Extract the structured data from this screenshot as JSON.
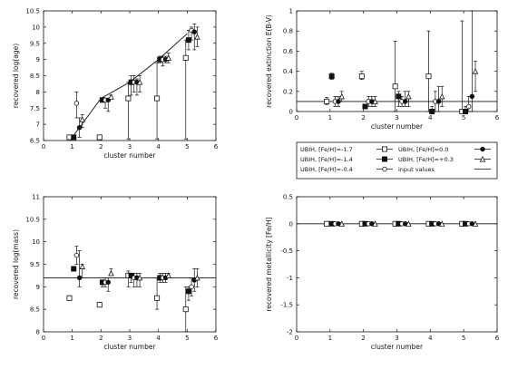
{
  "chart_data": [
    {
      "type": "scatter",
      "xlabel": "cluster number",
      "ylabel": "recovered log(age)",
      "xlim": [
        0,
        6
      ],
      "ylim": [
        6.5,
        10.5
      ],
      "xticks": [
        "0",
        "1",
        "2",
        "3",
        "4",
        "5",
        "6"
      ],
      "yticks": [
        "6.5",
        "7",
        "7.5",
        "8",
        "8.5",
        "9",
        "9.5",
        "10",
        "10.5"
      ],
      "input_values": [
        {
          "x": 1,
          "y": 6.6
        },
        {
          "x": 2,
          "y": 7.8
        },
        {
          "x": 3,
          "y": 8.3
        },
        {
          "x": 4,
          "y": 9.0
        },
        {
          "x": 5,
          "y": 9.8
        }
      ],
      "series": [
        {
          "name": "UBIH, [Fe/H]=-1.7",
          "marker": "open-square",
          "points": [
            {
              "x": 0.9,
              "y": 6.6,
              "lo": 6.55,
              "hi": 6.65
            },
            {
              "x": 1.95,
              "y": 6.6,
              "lo": 6.55,
              "hi": 6.65
            },
            {
              "x": 2.95,
              "y": 7.8,
              "lo": 6.55,
              "hi": 8.3
            },
            {
              "x": 3.95,
              "y": 7.8,
              "lo": 6.55,
              "hi": 8.9
            },
            {
              "x": 4.95,
              "y": 9.05,
              "lo": 6.55,
              "hi": 9.6
            }
          ]
        },
        {
          "name": "UBIH, [Fe/H]=-1.4",
          "marker": "filled-square",
          "points": [
            {
              "x": 1.05,
              "y": 6.6,
              "lo": 6.55,
              "hi": 6.65
            },
            {
              "x": 2.05,
              "y": 7.75,
              "lo": 7.7,
              "hi": 7.8
            },
            {
              "x": 3.05,
              "y": 8.3,
              "lo": 7.9,
              "hi": 8.5
            },
            {
              "x": 4.05,
              "y": 9.0,
              "lo": 8.9,
              "hi": 9.1
            },
            {
              "x": 5.05,
              "y": 9.6,
              "lo": 9.3,
              "hi": 9.9
            }
          ]
        },
        {
          "name": "UBIH, [Fe/H]=-0.4",
          "marker": "open-circle",
          "points": [
            {
              "x": 1.15,
              "y": 7.65,
              "lo": 7.2,
              "hi": 8.0
            },
            {
              "x": 2.15,
              "y": 7.75,
              "lo": 7.5,
              "hi": 7.8
            },
            {
              "x": 3.15,
              "y": 8.3,
              "lo": 8.0,
              "hi": 8.5
            },
            {
              "x": 4.15,
              "y": 9.0,
              "lo": 8.8,
              "hi": 9.1
            },
            {
              "x": 5.15,
              "y": 9.9,
              "lo": 9.6,
              "hi": 10.0
            }
          ]
        },
        {
          "name": "UBIH, [Fe/H]=0.0",
          "marker": "filled-circle",
          "points": [
            {
              "x": 1.25,
              "y": 6.9,
              "lo": 6.6,
              "hi": 7.2
            },
            {
              "x": 2.25,
              "y": 7.75,
              "lo": 7.4,
              "hi": 7.8
            },
            {
              "x": 3.25,
              "y": 8.3,
              "lo": 7.9,
              "hi": 8.4
            },
            {
              "x": 4.25,
              "y": 9.0,
              "lo": 8.9,
              "hi": 9.1
            },
            {
              "x": 5.25,
              "y": 9.85,
              "lo": 9.3,
              "hi": 10.1
            }
          ]
        },
        {
          "name": "UBIH, [Fe/H]=+0.3",
          "marker": "open-triangle",
          "points": [
            {
              "x": 1.35,
              "y": 7.15,
              "lo": 6.9,
              "hi": 7.3
            },
            {
              "x": 2.35,
              "y": 7.85,
              "lo": 7.8,
              "hi": 7.9
            },
            {
              "x": 3.35,
              "y": 8.3,
              "lo": 8.0,
              "hi": 8.5
            },
            {
              "x": 4.35,
              "y": 9.05,
              "lo": 8.9,
              "hi": 9.2
            },
            {
              "x": 5.35,
              "y": 9.7,
              "lo": 9.4,
              "hi": 10.0
            }
          ]
        }
      ]
    },
    {
      "type": "scatter",
      "xlabel": "cluster number",
      "ylabel": "recovered extinction E(B-V)",
      "xlim": [
        0,
        6
      ],
      "ylim": [
        0,
        1
      ],
      "xticks": [
        "0",
        "1",
        "2",
        "3",
        "4",
        "5",
        "6"
      ],
      "yticks": [
        "0",
        "0.2",
        "0.4",
        "0.6",
        "0.8",
        "1"
      ],
      "input_values": [
        {
          "x": 0,
          "y": 0.1
        },
        {
          "x": 6,
          "y": 0.1
        }
      ],
      "series": [
        {
          "name": "UBIH, [Fe/H]=-1.7",
          "marker": "open-square",
          "points": [
            {
              "x": 0.9,
              "y": 0.1,
              "lo": 0.07,
              "hi": 0.14
            },
            {
              "x": 1.95,
              "y": 0.35,
              "lo": 0.32,
              "hi": 0.4
            },
            {
              "x": 2.95,
              "y": 0.25,
              "lo": 0.0,
              "hi": 0.7
            },
            {
              "x": 3.95,
              "y": 0.35,
              "lo": 0.0,
              "hi": 0.8
            },
            {
              "x": 4.95,
              "y": 0.0,
              "lo": 0.0,
              "hi": 0.9
            }
          ]
        },
        {
          "name": "UBIH, [Fe/H]=-1.4",
          "marker": "filled-square",
          "points": [
            {
              "x": 1.05,
              "y": 0.35,
              "lo": 0.32,
              "hi": 0.38
            },
            {
              "x": 2.05,
              "y": 0.05,
              "lo": 0.03,
              "hi": 0.07
            },
            {
              "x": 3.05,
              "y": 0.15,
              "lo": 0.05,
              "hi": 0.2
            },
            {
              "x": 4.05,
              "y": 0.0,
              "lo": 0.0,
              "hi": 0.05
            },
            {
              "x": 5.05,
              "y": 0.0,
              "lo": 0.0,
              "hi": 0.05
            }
          ]
        },
        {
          "name": "UBIH, [Fe/H]=-0.4",
          "marker": "open-circle",
          "points": [
            {
              "x": 1.15,
              "y": 0.1,
              "lo": 0.05,
              "hi": 0.15
            },
            {
              "x": 2.15,
              "y": 0.1,
              "lo": 0.05,
              "hi": 0.15
            },
            {
              "x": 3.15,
              "y": 0.1,
              "lo": 0.05,
              "hi": 0.15
            },
            {
              "x": 4.15,
              "y": 0.1,
              "lo": 0.0,
              "hi": 0.2
            },
            {
              "x": 5.15,
              "y": 0.05,
              "lo": 0.0,
              "hi": 0.15
            }
          ]
        },
        {
          "name": "UBIH, [Fe/H]=0.0",
          "marker": "filled-circle",
          "points": [
            {
              "x": 1.25,
              "y": 0.1,
              "lo": 0.05,
              "hi": 0.15
            },
            {
              "x": 2.25,
              "y": 0.1,
              "lo": 0.05,
              "hi": 0.15
            },
            {
              "x": 3.25,
              "y": 0.1,
              "lo": 0.05,
              "hi": 0.2
            },
            {
              "x": 4.25,
              "y": 0.1,
              "lo": 0.0,
              "hi": 0.25
            },
            {
              "x": 5.25,
              "y": 0.15,
              "lo": 0.0,
              "hi": 1.0
            }
          ]
        },
        {
          "name": "UBIH, [Fe/H]=+0.3",
          "marker": "open-triangle",
          "points": [
            {
              "x": 1.35,
              "y": 0.15,
              "lo": 0.1,
              "hi": 0.2
            },
            {
              "x": 2.35,
              "y": 0.1,
              "lo": 0.05,
              "hi": 0.15
            },
            {
              "x": 3.35,
              "y": 0.15,
              "lo": 0.05,
              "hi": 0.2
            },
            {
              "x": 4.35,
              "y": 0.15,
              "lo": 0.05,
              "hi": 0.25
            },
            {
              "x": 5.35,
              "y": 0.4,
              "lo": 0.2,
              "hi": 0.5
            }
          ]
        }
      ]
    },
    {
      "type": "scatter",
      "xlabel": "cluster number",
      "ylabel": "recovered log(mass)",
      "xlim": [
        0,
        6
      ],
      "ylim": [
        8,
        11
      ],
      "xticks": [
        "0",
        "1",
        "2",
        "3",
        "4",
        "5",
        "6"
      ],
      "yticks": [
        "8",
        "8.5",
        "9",
        "9.5",
        "10",
        "10.5",
        "11"
      ],
      "input_values": [
        {
          "x": 0,
          "y": 9.2
        },
        {
          "x": 6,
          "y": 9.2
        }
      ],
      "series": [
        {
          "name": "UBIH, [Fe/H]=-1.7",
          "marker": "open-square",
          "points": [
            {
              "x": 0.9,
              "y": 8.75,
              "lo": 8.7,
              "hi": 8.8
            },
            {
              "x": 1.95,
              "y": 8.6,
              "lo": 8.55,
              "hi": 8.65
            },
            {
              "x": 2.95,
              "y": 9.25,
              "lo": 9.0,
              "hi": 9.35
            },
            {
              "x": 3.95,
              "y": 8.75,
              "lo": 8.5,
              "hi": 9.2
            },
            {
              "x": 4.95,
              "y": 8.5,
              "lo": 8.0,
              "hi": 9.0
            }
          ]
        },
        {
          "name": "UBIH, [Fe/H]=-1.4",
          "marker": "filled-square",
          "points": [
            {
              "x": 1.05,
              "y": 9.4,
              "lo": 9.35,
              "hi": 9.45
            },
            {
              "x": 2.05,
              "y": 9.1,
              "lo": 9.0,
              "hi": 9.15
            },
            {
              "x": 3.05,
              "y": 9.25,
              "lo": 9.1,
              "hi": 9.3
            },
            {
              "x": 4.05,
              "y": 9.2,
              "lo": 9.1,
              "hi": 9.3
            },
            {
              "x": 5.05,
              "y": 8.9,
              "lo": 8.7,
              "hi": 9.0
            }
          ]
        },
        {
          "name": "UBIH, [Fe/H]=-0.4",
          "marker": "open-circle",
          "points": [
            {
              "x": 1.15,
              "y": 9.7,
              "lo": 9.5,
              "hi": 9.9
            },
            {
              "x": 2.15,
              "y": 9.1,
              "lo": 9.0,
              "hi": 9.2
            },
            {
              "x": 3.15,
              "y": 9.2,
              "lo": 9.0,
              "hi": 9.3
            },
            {
              "x": 4.15,
              "y": 9.2,
              "lo": 9.1,
              "hi": 9.3
            },
            {
              "x": 5.15,
              "y": 9.0,
              "lo": 8.8,
              "hi": 9.2
            }
          ]
        },
        {
          "name": "UBIH, [Fe/H]=0.0",
          "marker": "filled-circle",
          "points": [
            {
              "x": 1.25,
              "y": 9.2,
              "lo": 9.0,
              "hi": 9.8
            },
            {
              "x": 2.25,
              "y": 9.1,
              "lo": 8.9,
              "hi": 9.2
            },
            {
              "x": 3.25,
              "y": 9.2,
              "lo": 9.0,
              "hi": 9.3
            },
            {
              "x": 4.25,
              "y": 9.2,
              "lo": 9.1,
              "hi": 9.3
            },
            {
              "x": 5.25,
              "y": 9.15,
              "lo": 8.9,
              "hi": 9.4
            }
          ]
        },
        {
          "name": "UBIH, [Fe/H]=+0.3",
          "marker": "open-triangle",
          "points": [
            {
              "x": 1.35,
              "y": 9.45,
              "lo": 9.2,
              "hi": 9.5
            },
            {
              "x": 2.35,
              "y": 9.3,
              "lo": 9.25,
              "hi": 9.4
            },
            {
              "x": 3.35,
              "y": 9.2,
              "lo": 9.0,
              "hi": 9.3
            },
            {
              "x": 4.35,
              "y": 9.25,
              "lo": 9.2,
              "hi": 9.3
            },
            {
              "x": 5.35,
              "y": 9.2,
              "lo": 9.0,
              "hi": 9.4
            }
          ]
        }
      ]
    },
    {
      "type": "scatter",
      "xlabel": "cluster number",
      "ylabel": "recovered metallicity [Fe/H]",
      "xlim": [
        0,
        6
      ],
      "ylim": [
        -2,
        0.5
      ],
      "xticks": [
        "0",
        "1",
        "2",
        "3",
        "4",
        "5",
        "6"
      ],
      "yticks": [
        "-2",
        "-1.5",
        "-1",
        "-0.5",
        "0",
        "0.5"
      ],
      "input_values": [
        {
          "x": 0,
          "y": 0
        },
        {
          "x": 6,
          "y": 0
        }
      ],
      "series": [
        {
          "name": "UBIH, [Fe/H]=-1.7",
          "marker": "open-square",
          "points": [
            {
              "x": 0.9,
              "y": 0
            },
            {
              "x": 1.95,
              "y": 0
            },
            {
              "x": 2.95,
              "y": 0
            },
            {
              "x": 3.95,
              "y": 0
            },
            {
              "x": 4.95,
              "y": 0
            }
          ]
        },
        {
          "name": "UBIH, [Fe/H]=-1.4",
          "marker": "filled-square",
          "points": [
            {
              "x": 1.05,
              "y": 0
            },
            {
              "x": 2.05,
              "y": 0
            },
            {
              "x": 3.05,
              "y": 0
            },
            {
              "x": 4.05,
              "y": 0
            },
            {
              "x": 5.05,
              "y": 0
            }
          ]
        },
        {
          "name": "UBIH, [Fe/H]=-0.4",
          "marker": "open-circle",
          "points": [
            {
              "x": 1.15,
              "y": 0
            },
            {
              "x": 2.15,
              "y": 0
            },
            {
              "x": 3.15,
              "y": 0
            },
            {
              "x": 4.15,
              "y": 0
            },
            {
              "x": 5.15,
              "y": 0
            }
          ]
        },
        {
          "name": "UBIH, [Fe/H]=0.0",
          "marker": "filled-circle",
          "points": [
            {
              "x": 1.25,
              "y": 0
            },
            {
              "x": 2.25,
              "y": 0
            },
            {
              "x": 3.25,
              "y": 0
            },
            {
              "x": 4.25,
              "y": 0
            },
            {
              "x": 5.25,
              "y": 0
            }
          ]
        },
        {
          "name": "UBIH, [Fe/H]=+0.3",
          "marker": "open-triangle",
          "points": [
            {
              "x": 1.35,
              "y": 0
            },
            {
              "x": 2.35,
              "y": 0
            },
            {
              "x": 3.35,
              "y": 0
            },
            {
              "x": 4.35,
              "y": 0
            },
            {
              "x": 5.35,
              "y": 0
            }
          ]
        }
      ]
    }
  ],
  "legend": {
    "placement": "below top-right panel",
    "entries": [
      {
        "label": "UBIH, [Fe/H]=-1.7",
        "marker": "open-square"
      },
      {
        "label": "UBIH, [Fe/H]=0.0",
        "marker": "filled-circle"
      },
      {
        "label": "UBIH, [Fe/H]=-1.4",
        "marker": "filled-square"
      },
      {
        "label": "UBIH, [Fe/H]=+0.3",
        "marker": "open-triangle"
      },
      {
        "label": "UBIH, [Fe/H]=-0.4",
        "marker": "open-circle"
      },
      {
        "label": "input values",
        "marker": "line"
      }
    ]
  }
}
